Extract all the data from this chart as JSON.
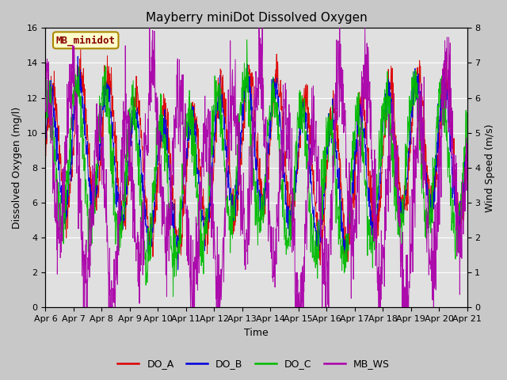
{
  "title": "Mayberry miniDot Dissolved Oxygen",
  "xlabel": "Time",
  "ylabel_left": "Dissolved Oxygen (mg/l)",
  "ylabel_right": "Wind Speed (m/s)",
  "ylim_left": [
    0,
    16
  ],
  "ylim_right": [
    0.0,
    8.0
  ],
  "yticks_left": [
    0,
    2,
    4,
    6,
    8,
    10,
    12,
    14,
    16
  ],
  "yticks_right": [
    0.0,
    1.0,
    2.0,
    3.0,
    4.0,
    5.0,
    6.0,
    7.0,
    8.0
  ],
  "xtick_labels": [
    "Apr 6",
    "Apr 7",
    "Apr 8",
    "Apr 9",
    "Apr 10",
    "Apr 11",
    "Apr 12",
    "Apr 13",
    "Apr 14",
    "Apr 15",
    "Apr 16",
    "Apr 17",
    "Apr 18",
    "Apr 19",
    "Apr 20",
    "Apr 21"
  ],
  "colors": {
    "DO_A": "#dd0000",
    "DO_B": "#0000dd",
    "DO_C": "#00bb00",
    "MB_WS": "#aa00aa"
  },
  "legend_label": "MB_minidot",
  "legend_box_color": "#ffffcc",
  "legend_box_edge": "#aa8800",
  "legend_text_color": "#880000",
  "background_color": "#c8c8c8",
  "axes_bg_color": "#e0e0e0",
  "grid_color": "#ffffff",
  "seed": 42,
  "n_points": 1500,
  "title_fontsize": 11,
  "axis_fontsize": 9,
  "tick_fontsize": 8
}
